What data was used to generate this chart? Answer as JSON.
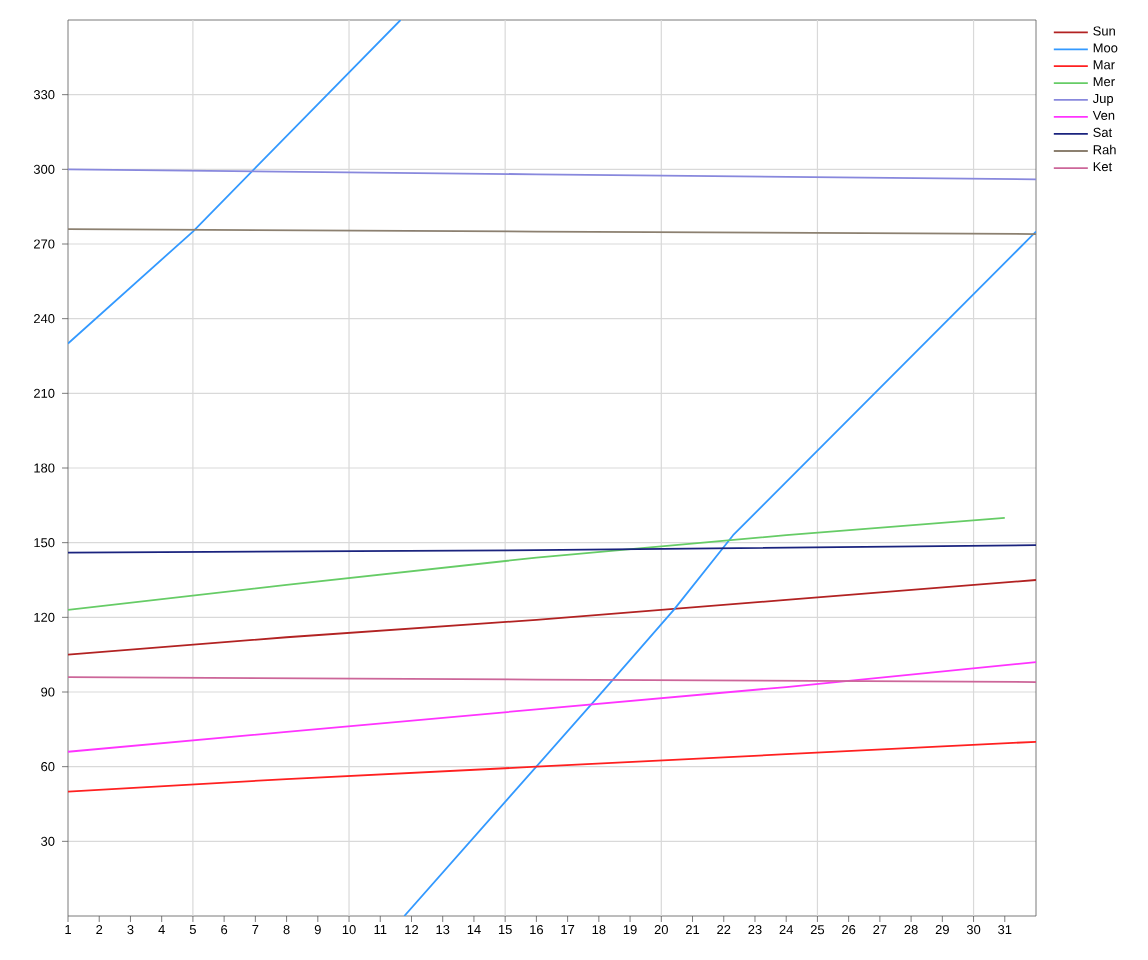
{
  "chart_data": {
    "type": "line",
    "xlim": [
      1,
      32
    ],
    "ylim": [
      0,
      360
    ],
    "xticks": [
      1,
      2,
      3,
      4,
      5,
      6,
      7,
      8,
      9,
      10,
      11,
      12,
      13,
      14,
      15,
      16,
      17,
      18,
      19,
      20,
      21,
      22,
      23,
      24,
      25,
      26,
      27,
      28,
      29,
      30,
      31
    ],
    "yticks": [
      30,
      60,
      90,
      120,
      150,
      180,
      210,
      240,
      270,
      300,
      330
    ],
    "grid": true,
    "legend": "top right",
    "marker": "none",
    "line_style": "solid",
    "series": [
      {
        "name": "Sun",
        "color": "#b22222",
        "x": [
          1,
          8,
          16,
          24,
          32
        ],
        "values": [
          105,
          112,
          119,
          127,
          135
        ]
      },
      {
        "name": "Moo",
        "color": "#3399ff",
        "x": [
          1,
          5,
          11.65,
          11.7,
          11.77,
          17.9,
          20.4,
          22.3,
          32
        ],
        "values": [
          230,
          275,
          360,
          null,
          0,
          87,
          123,
          153,
          275
        ]
      },
      {
        "name": "Mar",
        "color": "#ff2020",
        "x": [
          1,
          8,
          16,
          24,
          32
        ],
        "values": [
          50,
          55,
          60,
          65,
          70
        ]
      },
      {
        "name": "Mer",
        "color": "#66cc66",
        "x": [
          1,
          8,
          16,
          24,
          31
        ],
        "values": [
          123,
          133,
          144,
          153,
          160
        ]
      },
      {
        "name": "Jup",
        "color": "#8888dd",
        "x": [
          1,
          16,
          32
        ],
        "values": [
          300,
          298,
          296
        ]
      },
      {
        "name": "Ven",
        "color": "#ff33ff",
        "x": [
          1,
          8,
          16,
          24,
          32
        ],
        "values": [
          66,
          74,
          83,
          92,
          102
        ]
      },
      {
        "name": "Sat",
        "color": "#1a237e",
        "x": [
          1,
          16,
          32
        ],
        "values": [
          146,
          147,
          149
        ]
      },
      {
        "name": "Rah",
        "color": "#8c8070",
        "x": [
          1,
          16,
          32
        ],
        "values": [
          276,
          275,
          274
        ]
      },
      {
        "name": "Ket",
        "color": "#cc6699",
        "x": [
          1,
          16,
          32
        ],
        "values": [
          96,
          95,
          94
        ]
      }
    ]
  }
}
